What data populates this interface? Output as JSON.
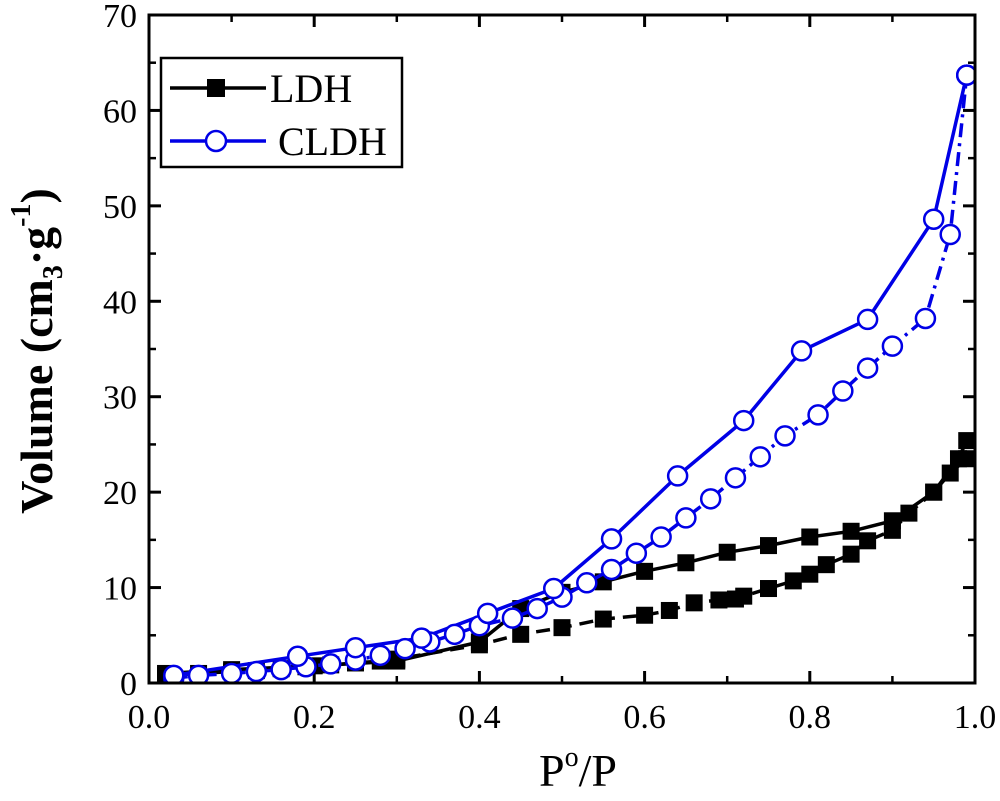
{
  "chart_data": {
    "type": "line",
    "xlabel_base": "P",
    "xlabel_sup": "o",
    "xlabel_rest": "/P",
    "ylabel_main": "Volume (cm",
    "ylabel_sub": "3",
    "ylabel_mid": "·g",
    "ylabel_sup": "-1",
    "ylabel_end": ")",
    "xlim": [
      0.0,
      1.0
    ],
    "ylim": [
      0,
      70
    ],
    "x_ticks": [
      "0.0",
      "0.2",
      "0.4",
      "0.6",
      "0.8",
      "1.0"
    ],
    "x_tick_values": [
      0.0,
      0.2,
      0.4,
      0.6,
      0.8,
      1.0
    ],
    "y_ticks": [
      "0",
      "10",
      "20",
      "30",
      "40",
      "50",
      "60",
      "70"
    ],
    "y_tick_values": [
      0,
      10,
      20,
      30,
      40,
      50,
      60,
      70
    ],
    "legend_position": "top-left",
    "series": [
      {
        "name": "LDH",
        "color": "#000000",
        "marker": "filled-square",
        "branches": [
          {
            "label": "adsorption",
            "line": "dashed",
            "x": [
              0.02,
              0.06,
              0.1,
              0.13,
              0.16,
              0.19,
              0.22,
              0.25,
              0.28,
              0.3,
              0.4,
              0.45,
              0.5,
              0.55,
              0.6,
              0.63,
              0.66,
              0.69,
              0.71,
              0.72,
              0.75,
              0.78,
              0.8,
              0.82,
              0.85,
              0.87,
              0.9,
              0.92,
              0.95,
              0.97,
              0.99
            ],
            "y": [
              0.8,
              1.0,
              1.2,
              1.3,
              1.5,
              1.7,
              1.9,
              2.1,
              2.3,
              2.5,
              4.0,
              5.1,
              5.8,
              6.7,
              7.1,
              7.6,
              8.4,
              8.7,
              8.8,
              9.1,
              9.9,
              10.7,
              11.4,
              12.4,
              13.5,
              14.9,
              16.0,
              17.8,
              20.0,
              22.0,
              23.5
            ]
          },
          {
            "label": "desorption",
            "line": "solid",
            "x": [
              0.99,
              0.98,
              0.95,
              0.9,
              0.85,
              0.8,
              0.75,
              0.7,
              0.65,
              0.6,
              0.55,
              0.5,
              0.45,
              0.4,
              0.3,
              0.2,
              0.1,
              0.02
            ],
            "y": [
              25.4,
              23.5,
              20.0,
              17.0,
              15.9,
              15.3,
              14.4,
              13.7,
              12.6,
              11.7,
              10.6,
              9.5,
              7.8,
              4.3,
              2.3,
              1.8,
              1.4,
              1.0
            ]
          }
        ]
      },
      {
        "name": "CLDH",
        "color": "#0000e6",
        "marker": "open-circle",
        "branches": [
          {
            "label": "adsorption",
            "line": "dash-dot",
            "x": [
              0.03,
              0.06,
              0.1,
              0.13,
              0.16,
              0.19,
              0.22,
              0.25,
              0.28,
              0.31,
              0.34,
              0.37,
              0.4,
              0.44,
              0.47,
              0.5,
              0.53,
              0.56,
              0.59,
              0.62,
              0.65,
              0.68,
              0.71,
              0.74,
              0.77,
              0.81,
              0.84,
              0.87,
              0.9,
              0.94,
              0.97,
              0.99
            ],
            "y": [
              0.5,
              0.8,
              1.0,
              1.2,
              1.4,
              1.7,
              2.0,
              2.4,
              2.9,
              3.6,
              4.3,
              5.1,
              6.0,
              6.8,
              7.8,
              9.0,
              10.5,
              11.9,
              13.6,
              15.3,
              17.3,
              19.3,
              21.5,
              23.7,
              25.9,
              28.1,
              30.6,
              33.0,
              35.3,
              38.2,
              47.0,
              63.7
            ]
          },
          {
            "label": "desorption",
            "line": "solid",
            "x": [
              0.99,
              0.95,
              0.87,
              0.79,
              0.72,
              0.64,
              0.56,
              0.49,
              0.41,
              0.33,
              0.25,
              0.18,
              0.03
            ],
            "y": [
              63.7,
              48.6,
              38.1,
              34.8,
              27.5,
              21.7,
              15.1,
              9.9,
              7.3,
              4.7,
              3.7,
              2.8,
              0.8
            ]
          }
        ]
      }
    ]
  }
}
